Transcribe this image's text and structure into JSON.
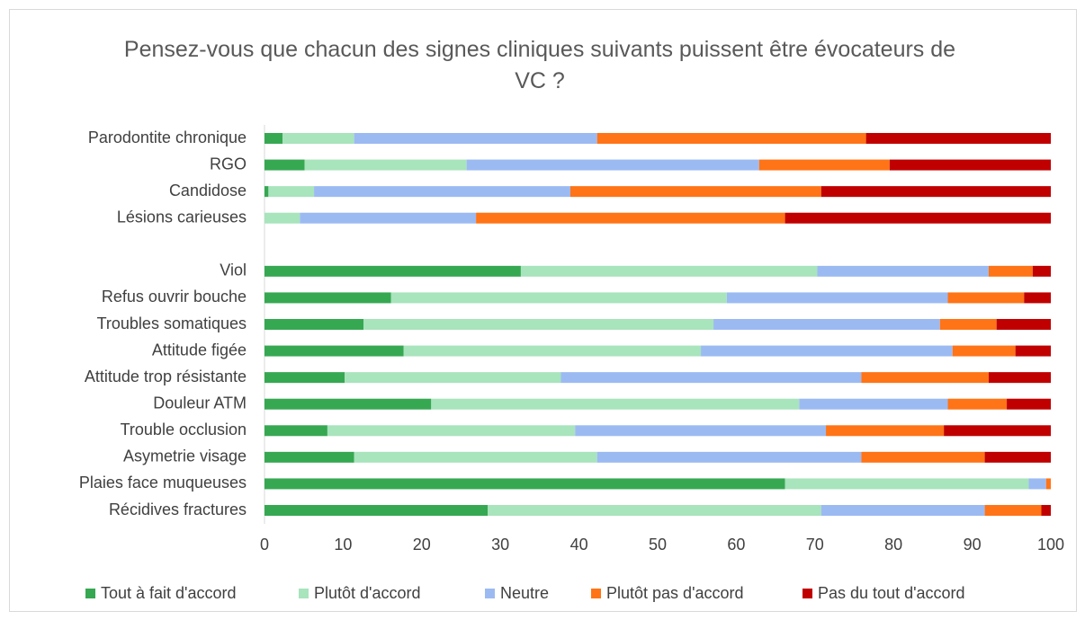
{
  "chart_data": {
    "type": "stacked_bar_horizontal",
    "title": "Pensez-vous que chacun des signes cliniques suivants puissent être évocateurs de VC ?",
    "categories": [
      "Parodontite chronique",
      "RGO",
      "Candidose",
      "Lésions carieuses",
      null,
      "Viol",
      "Refus ouvrir bouche",
      "Troubles somatiques",
      "Attitude figée",
      "Attitude trop résistante",
      "Douleur ATM",
      "Trouble occlusion",
      "Asymetrie visage",
      "Plaies face muqueuses",
      "Récidives fractures"
    ],
    "series": [
      {
        "name": "Tout à fait d'accord",
        "color": "#36a852",
        "values": [
          2.3,
          5.1,
          0.5,
          0,
          null,
          32.6,
          16.1,
          12.6,
          17.7,
          10.2,
          21.2,
          8.0,
          11.4,
          66.2,
          28.4
        ]
      },
      {
        "name": "Plutôt d'accord",
        "color": "#a8e4bc",
        "values": [
          9.1,
          20.6,
          5.8,
          4.5,
          null,
          37.7,
          42.7,
          44.5,
          37.8,
          27.5,
          46.8,
          31.5,
          30.9,
          31.0,
          42.4
        ]
      },
      {
        "name": "Neutre",
        "color": "#9cbaf2",
        "values": [
          30.9,
          37.2,
          32.6,
          22.4,
          null,
          21.8,
          28.1,
          28.8,
          32.0,
          38.2,
          18.9,
          31.9,
          33.6,
          2.2,
          20.8
        ]
      },
      {
        "name": "Plutôt pas d'accord",
        "color": "#ff7417",
        "values": [
          34.2,
          16.6,
          31.9,
          39.3,
          null,
          5.6,
          9.7,
          7.2,
          8.0,
          16.2,
          7.5,
          15.0,
          15.7,
          0.6,
          7.2
        ]
      },
      {
        "name": "Pas du tout d'accord",
        "color": "#c00000",
        "values": [
          23.5,
          20.5,
          29.2,
          33.8,
          null,
          2.3,
          3.4,
          6.9,
          4.5,
          7.9,
          5.6,
          13.6,
          8.4,
          0,
          1.2
        ]
      }
    ],
    "xlim": [
      0,
      100
    ],
    "xticks": [
      0,
      10,
      20,
      30,
      40,
      50,
      60,
      70,
      80,
      90,
      100
    ],
    "grid": false,
    "legend": "bottom"
  }
}
